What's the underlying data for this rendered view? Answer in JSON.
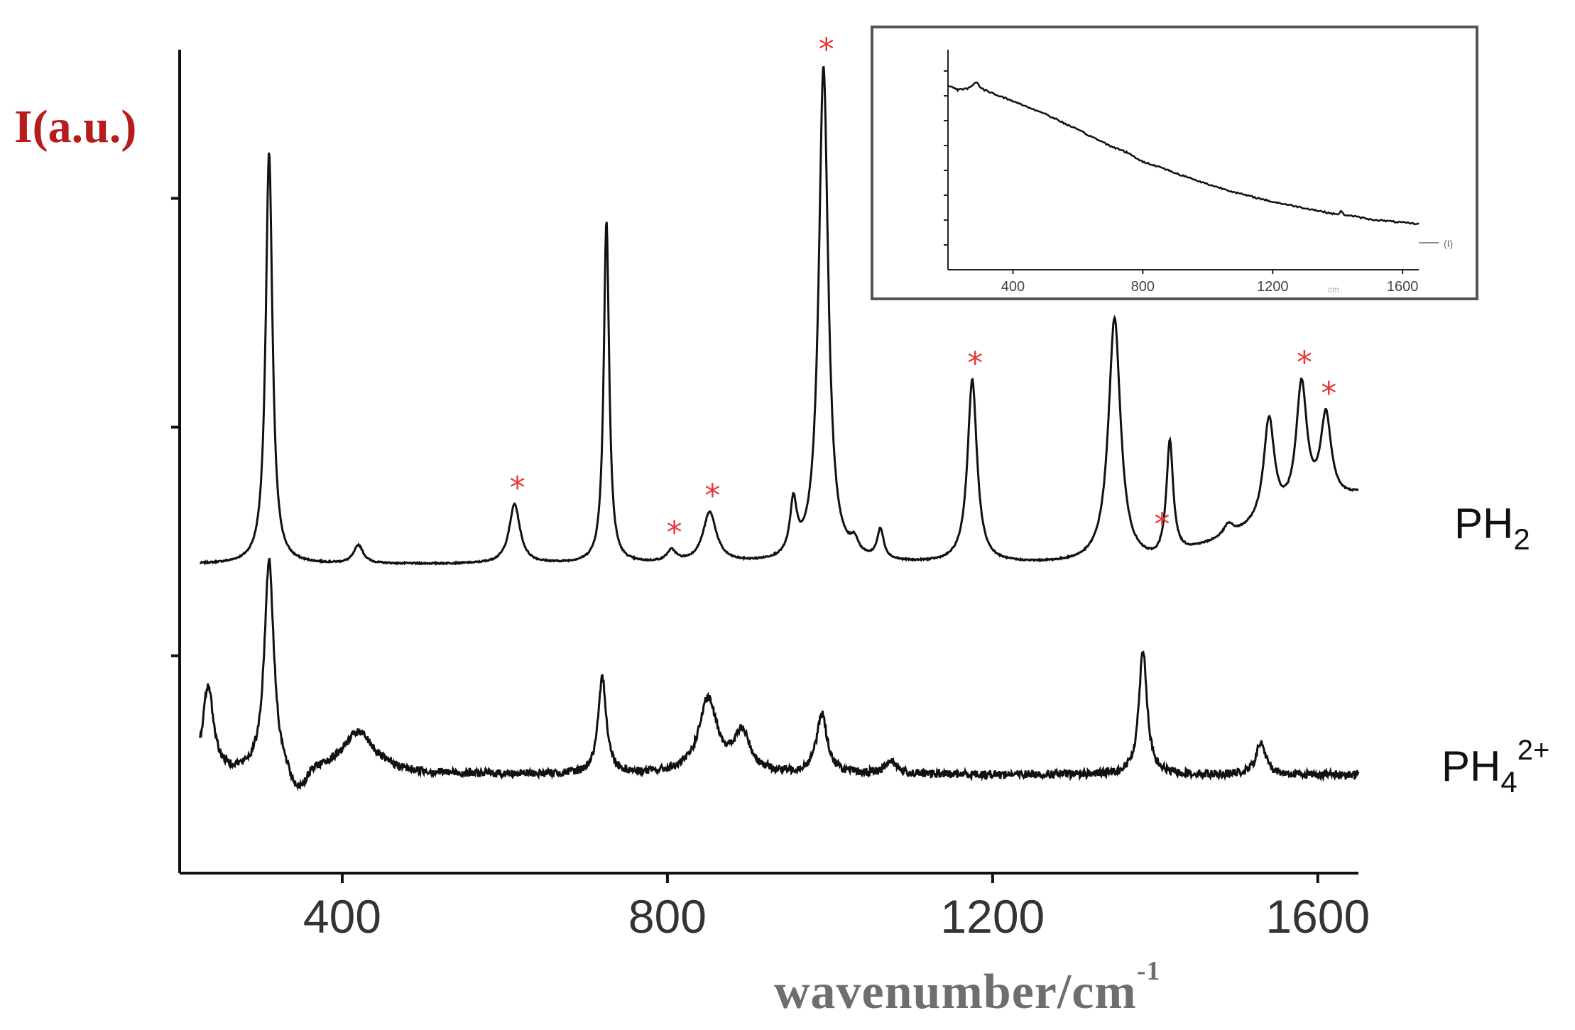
{
  "chart_data": [
    {
      "type": "line",
      "title": "",
      "xlabel": "wavenumber/cm",
      "xlabel_superscript": "-1",
      "ylabel": "I(a.u.)",
      "xlim": [
        200,
        1650
      ],
      "ylim": [
        -0.35,
        3.25
      ],
      "x_ticks": [
        400,
        800,
        1200,
        1600
      ],
      "y_ticks": [
        0.6,
        1.6,
        2.6
      ],
      "grid": false,
      "series": [
        {
          "name": "PH",
          "name_subscript": "2",
          "color": "#111111",
          "baseline": 1.0,
          "peaks": [
            {
              "x": 310,
              "h": 1.8,
              "w": 5
            },
            {
              "x": 420,
              "h": 0.08,
              "w": 7
            },
            {
              "x": 612,
              "h": 0.26,
              "w": 8
            },
            {
              "x": 725,
              "h": 1.5,
              "w": 4
            },
            {
              "x": 805,
              "h": 0.05,
              "w": 7
            },
            {
              "x": 852,
              "h": 0.22,
              "w": 10
            },
            {
              "x": 955,
              "h": 0.23,
              "w": 5
            },
            {
              "x": 992,
              "h": 2.17,
              "w": 7
            },
            {
              "x": 1030,
              "h": 0.06,
              "w": 6
            },
            {
              "x": 1062,
              "h": 0.13,
              "w": 5
            },
            {
              "x": 1175,
              "h": 0.8,
              "w": 7
            },
            {
              "x": 1350,
              "h": 1.07,
              "w": 9
            },
            {
              "x": 1418,
              "h": 0.5,
              "w": 5
            },
            {
              "x": 1490,
              "h": 0.05,
              "w": 7
            },
            {
              "x": 1540,
              "h": 0.45,
              "w": 8
            },
            {
              "x": 1580,
              "h": 0.55,
              "w": 8
            },
            {
              "x": 1610,
              "h": 0.38,
              "w": 8
            }
          ],
          "slope": [
            {
              "x": 1400,
              "y": 0.3
            },
            {
              "x": 1650,
              "y": 0.3
            }
          ],
          "starred_peaks": [
            612,
            805,
            852,
            992,
            1175,
            1405,
            1580,
            1610
          ]
        },
        {
          "name": "PH",
          "name_subscript": "4",
          "name_superscript": "2+",
          "color": "#111111",
          "baseline": 0.08,
          "peaks": [
            {
              "x": 235,
              "h": 0.38,
              "w": 8
            },
            {
              "x": 310,
              "h": 0.93,
              "w": 7
            },
            {
              "x": 420,
              "h": 0.18,
              "w": 25
            },
            {
              "x": 720,
              "h": 0.42,
              "w": 6
            },
            {
              "x": 850,
              "h": 0.32,
              "w": 14
            },
            {
              "x": 892,
              "h": 0.17,
              "w": 12
            },
            {
              "x": 990,
              "h": 0.26,
              "w": 8
            },
            {
              "x": 1075,
              "h": 0.06,
              "w": 8
            },
            {
              "x": 1385,
              "h": 0.55,
              "w": 6
            },
            {
              "x": 1530,
              "h": 0.14,
              "w": 7
            }
          ]
        }
      ],
      "annotations": [
        {
          "type": "star",
          "symbol": "*",
          "color": "#e53935"
        }
      ]
    },
    {
      "type": "line",
      "role": "inset",
      "title": "",
      "xlim": [
        200,
        1650
      ],
      "x_ticks": [
        400,
        800,
        1200,
        1600
      ],
      "tick_unit_label": "cm",
      "ylabel": "(I)",
      "series": [
        {
          "name": "",
          "color": "#111111",
          "points": [
            [
              200,
              1.0
            ],
            [
              230,
              0.97
            ],
            [
              260,
              0.98
            ],
            [
              290,
              1.02
            ],
            [
              300,
              0.98
            ],
            [
              400,
              0.9
            ],
            [
              500,
              0.82
            ],
            [
              600,
              0.72
            ],
            [
              700,
              0.62
            ],
            [
              750,
              0.58
            ],
            [
              800,
              0.52
            ],
            [
              850,
              0.49
            ],
            [
              900,
              0.45
            ],
            [
              1000,
              0.38
            ],
            [
              1100,
              0.32
            ],
            [
              1200,
              0.27
            ],
            [
              1300,
              0.23
            ],
            [
              1400,
              0.19
            ],
            [
              1410,
              0.21
            ],
            [
              1420,
              0.19
            ],
            [
              1500,
              0.16
            ],
            [
              1600,
              0.14
            ],
            [
              1650,
              0.13
            ]
          ]
        }
      ]
    }
  ]
}
